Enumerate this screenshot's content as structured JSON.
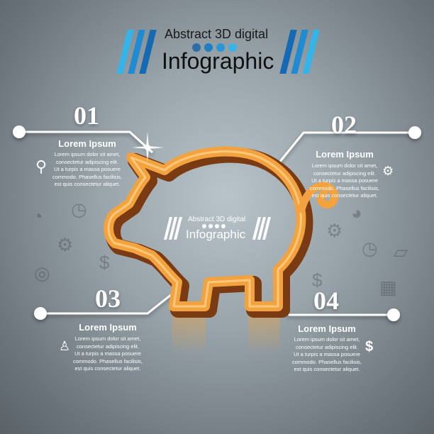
{
  "header": {
    "line1": "Abstract 3D digital",
    "line2": "Infographic",
    "dot_colors": [
      "#2a6fa8",
      "#1f7fc6",
      "#2896d8",
      "#37b3e8"
    ],
    "bar_colors": [
      "#35b4ea",
      "#1f8bd2",
      "#1669b3"
    ]
  },
  "center_label": {
    "line1": "Abstract 3D digital",
    "line2": "Infographic"
  },
  "pig_color": "#f0a03a",
  "sections": [
    {
      "number": "01",
      "title": "Lorem Ipsum",
      "text": [
        "Lorem ipsum dolor sit amet,",
        "consectetur adipiscing elit.",
        "Ut a turpis a massa posuere",
        "commodo. Phasellus facilisis,",
        "est quis consectetur aliquet."
      ],
      "icon": "magnifier-icon"
    },
    {
      "number": "02",
      "title": "Lorem Ipsum",
      "text": [
        "Lorem ipsum dolor sit amet,",
        "consectetur adipiscing elit.",
        "Ut a turpis a massa posuere",
        "commodo. Phasellus facilisis,",
        "est quis consectetur aliquet."
      ],
      "icon": "gears-icon"
    },
    {
      "number": "03",
      "title": "Lorem Ipsum",
      "text": [
        "Lorem ipsum dolor sit amet,",
        "consectetur adipiscing elit.",
        "Ut a turpis a massa posuere",
        "commodo. Phasellus facilisis,",
        "est quis consectetur aliquet."
      ],
      "icon": "businessman-icon"
    },
    {
      "number": "04",
      "title": "Lorem Ipsum",
      "text": [
        "Lorem ipsum dolor sit amet,",
        "consectetur adipiscing elit.",
        "Ut a turpis a massa posuere",
        "commodo. Phasellus facilisis,",
        "est quis consectetur aliquet."
      ],
      "icon": "dollar-icon"
    }
  ]
}
